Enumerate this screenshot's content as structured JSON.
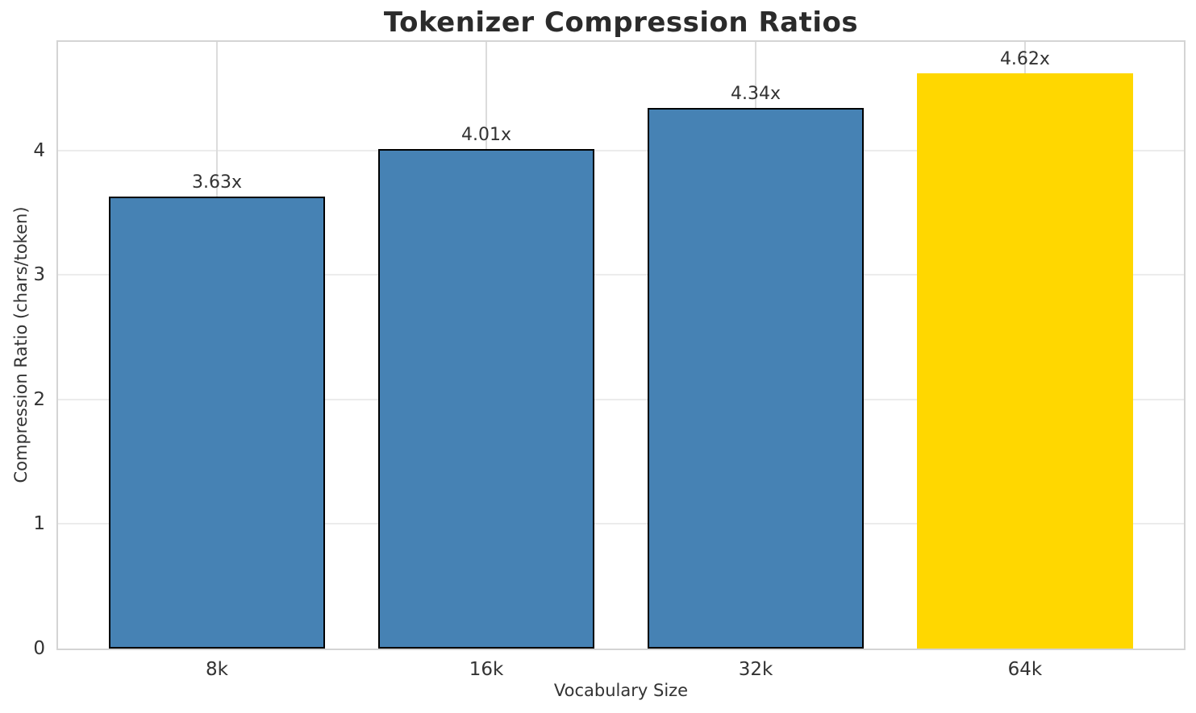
{
  "chart_data": {
    "type": "bar",
    "title": "Tokenizer Compression Ratios",
    "xlabel": "Vocabulary Size",
    "ylabel": "Compression Ratio (chars/token)",
    "categories": [
      "8k",
      "16k",
      "32k",
      "64k"
    ],
    "values": [
      3.63,
      4.01,
      4.34,
      4.62
    ],
    "bar_labels": [
      "3.63x",
      "4.01x",
      "4.34x",
      "4.62x"
    ],
    "bar_colors": [
      "#4682B4",
      "#4682B4",
      "#4682B4",
      "#FFD700"
    ],
    "bar_edge_colors": [
      "#000000",
      "#000000",
      "#000000",
      "none"
    ],
    "base_color": "#4682B4",
    "highlight_color": "#FFD700",
    "yticks": [
      0,
      1,
      2,
      3,
      4
    ],
    "ylim": [
      0,
      4.87
    ],
    "xlim": [
      -0.59,
      3.59
    ],
    "bar_width_units": 0.8,
    "grid": true,
    "legend": "none"
  }
}
